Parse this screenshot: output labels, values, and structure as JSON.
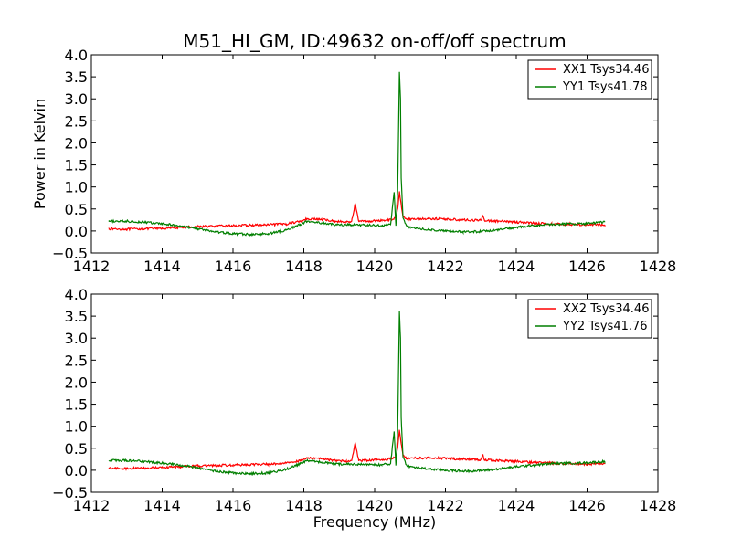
{
  "figure": {
    "title": "M51_HI_GM, ID:49632 on-off/off spectrum"
  },
  "chart_data": [
    {
      "type": "line",
      "title": "M51_HI_GM, ID:49632 on-off/off spectrum",
      "xlabel": "",
      "ylabel": "Power in Kelvin",
      "xlim": [
        1412,
        1428
      ],
      "ylim": [
        -0.5,
        4.0
      ],
      "xticks": [
        "1412",
        "1414",
        "1416",
        "1418",
        "1420",
        "1422",
        "1424",
        "1426",
        "1428"
      ],
      "yticks": [
        "−0.5",
        "0.0",
        "0.5",
        "1.0",
        "1.5",
        "2.0",
        "2.5",
        "3.0",
        "3.5",
        "4.0"
      ],
      "legend_position": "top-right",
      "grid": false,
      "series": [
        {
          "name": "XX1 Tsys34.46",
          "color": "#ff0000",
          "x": [
            1412.5,
            1413.0,
            1413.5,
            1414.0,
            1414.5,
            1415.0,
            1415.5,
            1416.0,
            1416.5,
            1417.0,
            1417.5,
            1417.9,
            1418.1,
            1418.5,
            1418.9,
            1419.2,
            1419.35,
            1419.45,
            1419.55,
            1419.8,
            1420.2,
            1420.5,
            1420.6,
            1420.65,
            1420.7,
            1420.75,
            1420.8,
            1420.9,
            1421.5,
            1422.0,
            1422.5,
            1423.0,
            1423.05,
            1423.1,
            1423.5,
            1424.0,
            1424.5,
            1425.0,
            1425.5,
            1426.0,
            1426.5
          ],
          "y": [
            0.05,
            0.04,
            0.05,
            0.06,
            0.08,
            0.1,
            0.11,
            0.12,
            0.13,
            0.14,
            0.16,
            0.22,
            0.28,
            0.26,
            0.22,
            0.2,
            0.22,
            0.62,
            0.22,
            0.22,
            0.24,
            0.26,
            0.3,
            0.5,
            0.9,
            0.6,
            0.35,
            0.27,
            0.28,
            0.27,
            0.25,
            0.24,
            0.35,
            0.24,
            0.22,
            0.2,
            0.18,
            0.16,
            0.15,
            0.14,
            0.14
          ]
        },
        {
          "name": "YY1 Tsys41.78",
          "color": "#007f00",
          "x": [
            1412.5,
            1413.0,
            1413.5,
            1414.0,
            1414.5,
            1415.0,
            1415.5,
            1416.0,
            1416.5,
            1417.0,
            1417.5,
            1417.9,
            1418.1,
            1418.5,
            1418.9,
            1419.3,
            1419.8,
            1420.2,
            1420.45,
            1420.55,
            1420.6,
            1420.65,
            1420.7,
            1420.73,
            1420.75,
            1420.8,
            1420.9,
            1421.0,
            1421.5,
            1422.0,
            1422.5,
            1423.0,
            1423.5,
            1424.0,
            1424.5,
            1425.0,
            1425.5,
            1426.0,
            1426.5
          ],
          "y": [
            0.22,
            0.22,
            0.2,
            0.16,
            0.12,
            0.05,
            -0.02,
            -0.06,
            -0.08,
            -0.06,
            0.02,
            0.15,
            0.22,
            0.18,
            0.14,
            0.14,
            0.13,
            0.12,
            0.15,
            0.88,
            0.12,
            0.9,
            3.6,
            3.0,
            1.2,
            0.3,
            0.12,
            0.08,
            0.03,
            0.0,
            -0.02,
            -0.01,
            0.03,
            0.08,
            0.12,
            0.15,
            0.16,
            0.17,
            0.2
          ]
        }
      ]
    },
    {
      "type": "line",
      "title": "",
      "xlabel": "Frequency (MHz)",
      "ylabel": "",
      "xlim": [
        1412,
        1428
      ],
      "ylim": [
        -0.5,
        4.0
      ],
      "xticks": [
        "1412",
        "1414",
        "1416",
        "1418",
        "1420",
        "1422",
        "1424",
        "1426",
        "1428"
      ],
      "yticks": [
        "−0.5",
        "0.0",
        "0.5",
        "1.0",
        "1.5",
        "2.0",
        "2.5",
        "3.0",
        "3.5",
        "4.0"
      ],
      "legend_position": "top-right",
      "grid": false,
      "series": [
        {
          "name": "XX2 Tsys34.46",
          "color": "#ff0000",
          "x": [
            1412.5,
            1413.0,
            1413.5,
            1414.0,
            1414.5,
            1415.0,
            1415.5,
            1416.0,
            1416.5,
            1417.0,
            1417.5,
            1417.9,
            1418.1,
            1418.5,
            1418.9,
            1419.2,
            1419.35,
            1419.45,
            1419.55,
            1419.8,
            1420.2,
            1420.5,
            1420.6,
            1420.65,
            1420.7,
            1420.75,
            1420.8,
            1420.9,
            1421.5,
            1422.0,
            1422.5,
            1423.0,
            1423.05,
            1423.1,
            1423.5,
            1424.0,
            1424.5,
            1425.0,
            1425.5,
            1426.0,
            1426.5
          ],
          "y": [
            0.05,
            0.04,
            0.05,
            0.06,
            0.08,
            0.1,
            0.11,
            0.12,
            0.13,
            0.14,
            0.16,
            0.22,
            0.28,
            0.26,
            0.22,
            0.2,
            0.22,
            0.62,
            0.22,
            0.22,
            0.24,
            0.26,
            0.3,
            0.5,
            0.9,
            0.6,
            0.35,
            0.27,
            0.28,
            0.27,
            0.25,
            0.24,
            0.35,
            0.24,
            0.22,
            0.2,
            0.18,
            0.16,
            0.15,
            0.14,
            0.14
          ]
        },
        {
          "name": "YY2 Tsys41.76",
          "color": "#007f00",
          "x": [
            1412.5,
            1413.0,
            1413.5,
            1414.0,
            1414.5,
            1415.0,
            1415.5,
            1416.0,
            1416.5,
            1417.0,
            1417.5,
            1417.9,
            1418.1,
            1418.5,
            1418.9,
            1419.3,
            1419.8,
            1420.2,
            1420.45,
            1420.55,
            1420.6,
            1420.65,
            1420.7,
            1420.73,
            1420.75,
            1420.8,
            1420.9,
            1421.0,
            1421.5,
            1422.0,
            1422.5,
            1423.0,
            1423.5,
            1424.0,
            1424.5,
            1425.0,
            1425.5,
            1426.0,
            1426.5
          ],
          "y": [
            0.22,
            0.22,
            0.2,
            0.16,
            0.12,
            0.05,
            -0.02,
            -0.06,
            -0.08,
            -0.06,
            0.02,
            0.15,
            0.22,
            0.18,
            0.14,
            0.14,
            0.13,
            0.12,
            0.15,
            0.88,
            0.12,
            0.9,
            3.6,
            3.0,
            1.2,
            0.3,
            0.12,
            0.08,
            0.03,
            0.0,
            -0.02,
            -0.01,
            0.03,
            0.08,
            0.12,
            0.15,
            0.16,
            0.17,
            0.2
          ]
        }
      ]
    }
  ]
}
